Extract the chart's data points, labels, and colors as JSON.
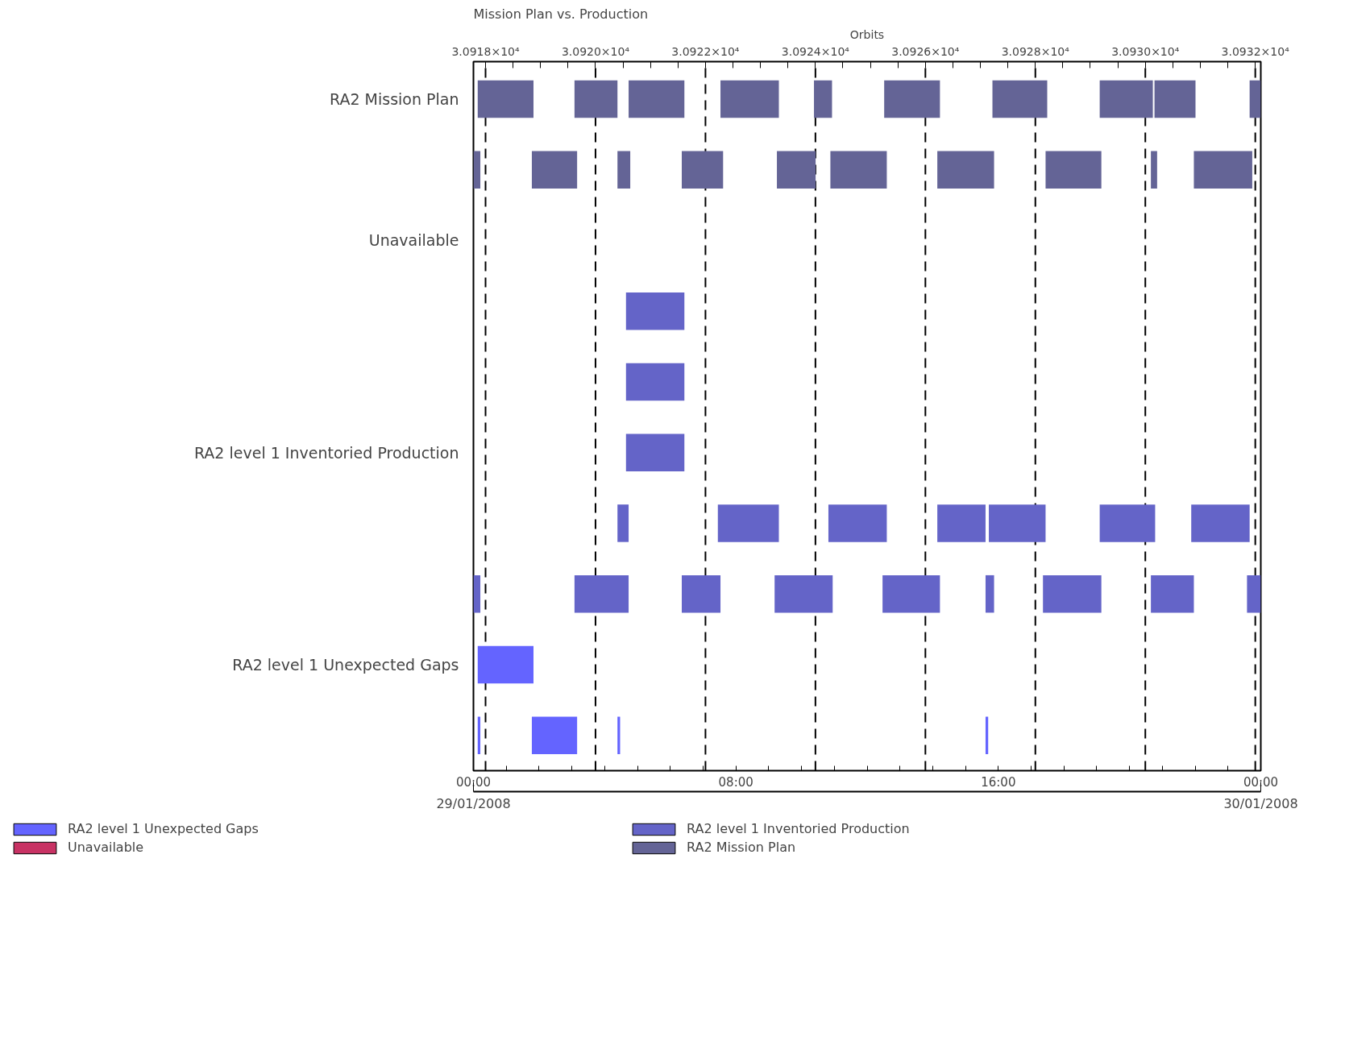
{
  "chart_data": {
    "type": "bar",
    "orientation": "horizontal",
    "title": "Mission Plan vs. Production",
    "x2label": "Orbits",
    "categories": [
      "RA2 Mission Plan",
      null,
      "Unavailable",
      null,
      null,
      "RA2 level 1 Inventoried Production",
      null,
      null,
      "RA2 level 1 Unexpected Gaps",
      null
    ],
    "xlim": [
      0,
      24
    ],
    "xticks": [
      {
        "value": 0,
        "label": "00:00"
      },
      {
        "value": 1,
        "label": null
      },
      {
        "value": 2,
        "label": null
      },
      {
        "value": 3,
        "label": null
      },
      {
        "value": 4,
        "label": null
      },
      {
        "value": 5,
        "label": null
      },
      {
        "value": 6,
        "label": null
      },
      {
        "value": 7,
        "label": null
      },
      {
        "value": 8,
        "label": "08:00"
      },
      {
        "value": 9,
        "label": null
      },
      {
        "value": 10,
        "label": null
      },
      {
        "value": 11,
        "label": null
      },
      {
        "value": 12,
        "label": null
      },
      {
        "value": 13,
        "label": null
      },
      {
        "value": 14,
        "label": null
      },
      {
        "value": 15,
        "label": null
      },
      {
        "value": 16,
        "label": "16:00"
      },
      {
        "value": 17,
        "label": null
      },
      {
        "value": 18,
        "label": null
      },
      {
        "value": 19,
        "label": null
      },
      {
        "value": 20,
        "label": null
      },
      {
        "value": 21,
        "label": null
      },
      {
        "value": 22,
        "label": null
      },
      {
        "value": 23,
        "label": null
      },
      {
        "value": 24,
        "label": "00:00"
      }
    ],
    "annotations": [
      "29/01/2008",
      "30/01/2008"
    ],
    "x2lim": [
      30917.78,
      30932.1
    ],
    "x2ticks": [
      {
        "value": 30918,
        "label": "3.0918×10⁴"
      },
      {
        "value": 30918.5,
        "label": null
      },
      {
        "value": 30919,
        "label": null
      },
      {
        "value": 30919.5,
        "label": null
      },
      {
        "value": 30920,
        "label": "3.0920×10⁴"
      },
      {
        "value": 30920.5,
        "label": null
      },
      {
        "value": 30921,
        "label": null
      },
      {
        "value": 30921.5,
        "label": null
      },
      {
        "value": 30922,
        "label": "3.0922×10⁴"
      },
      {
        "value": 30922.5,
        "label": null
      },
      {
        "value": 30923,
        "label": null
      },
      {
        "value": 30923.5,
        "label": null
      },
      {
        "value": 30924,
        "label": "3.0924×10⁴"
      },
      {
        "value": 30924.5,
        "label": null
      },
      {
        "value": 30925,
        "label": null
      },
      {
        "value": 30925.5,
        "label": null
      },
      {
        "value": 30926,
        "label": "3.0926×10⁴"
      },
      {
        "value": 30926.5,
        "label": null
      },
      {
        "value": 30927,
        "label": null
      },
      {
        "value": 30927.5,
        "label": null
      },
      {
        "value": 30928,
        "label": "3.0928×10⁴"
      },
      {
        "value": 30928.5,
        "label": null
      },
      {
        "value": 30929,
        "label": null
      },
      {
        "value": 30929.5,
        "label": null
      },
      {
        "value": 30930,
        "label": "3.0930×10⁴"
      },
      {
        "value": 30930.5,
        "label": null
      },
      {
        "value": 30931,
        "label": null
      },
      {
        "value": 30931.5,
        "label": null
      },
      {
        "value": 30932,
        "label": "3.0932×10⁴"
      }
    ],
    "ref_lines": [
      {
        "axis": "x2",
        "value": 30918,
        "line_style": "dashed"
      },
      {
        "axis": "x2",
        "value": 30920,
        "line_style": "dashed"
      },
      {
        "axis": "x2",
        "value": 30922,
        "line_style": "dashed"
      },
      {
        "axis": "x2",
        "value": 30924,
        "line_style": "dashed"
      },
      {
        "axis": "x2",
        "value": 30926,
        "line_style": "dashed"
      },
      {
        "axis": "x2",
        "value": 30928,
        "line_style": "dashed"
      },
      {
        "axis": "x2",
        "value": 30930,
        "line_style": "dashed"
      },
      {
        "axis": "x2",
        "value": 30932,
        "line_style": "dashed"
      }
    ],
    "legend": "bottom",
    "grid": false,
    "series": [
      {
        "name": "RA2 level 1 Unexpected Gaps",
        "color": "#6464ff",
        "base": [
          null,
          null,
          null,
          null,
          null,
          null,
          null,
          null,
          0.13,
          0.13
        ],
        "values": [
          null,
          null,
          null,
          null,
          null,
          null,
          null,
          null,
          1.7,
          0.08
        ]
      },
      {
        "color": "#6464ff",
        "base": [
          null,
          null,
          null,
          null,
          null,
          null,
          null,
          null,
          null,
          1.78
        ],
        "values": [
          null,
          null,
          null,
          null,
          null,
          null,
          null,
          null,
          null,
          1.38
        ]
      },
      {
        "color": "#6464ff",
        "base": [
          null,
          null,
          null,
          null,
          null,
          null,
          null,
          null,
          null,
          4.39
        ],
        "values": [
          null,
          null,
          null,
          null,
          null,
          null,
          null,
          null,
          null,
          0.08
        ]
      },
      {
        "color": "#6464ff",
        "base": [
          null,
          null,
          null,
          null,
          null,
          null,
          null,
          null,
          null,
          15.61
        ],
        "values": [
          null,
          null,
          null,
          null,
          null,
          null,
          null,
          null,
          null,
          0.08
        ]
      },
      {
        "name": "Unavailable",
        "color": "#c83264",
        "base": [
          null,
          null,
          null,
          null,
          null,
          null,
          null,
          null,
          null,
          null
        ],
        "values": [
          null,
          null,
          null,
          null,
          null,
          null,
          null,
          null,
          null,
          null
        ]
      },
      {
        "name": "RA2 level 1 Inventoried Production",
        "color": "#6464c8",
        "base": [
          null,
          null,
          null,
          4.65,
          4.65,
          4.65,
          4.39,
          0,
          null,
          null
        ],
        "values": [
          null,
          null,
          null,
          1.78,
          1.78,
          1.78,
          0.34,
          0.21,
          null,
          null
        ]
      },
      {
        "color": "#6464c8",
        "base": [
          null,
          null,
          null,
          null,
          null,
          null,
          7.45,
          3.08,
          null,
          null
        ],
        "values": [
          null,
          null,
          null,
          null,
          null,
          null,
          1.86,
          1.65,
          null,
          null
        ]
      },
      {
        "color": "#6464c8",
        "base": [
          null,
          null,
          null,
          null,
          null,
          null,
          10.82,
          6.35,
          null,
          null
        ],
        "values": [
          null,
          null,
          null,
          null,
          null,
          null,
          1.78,
          1.18,
          null,
          null
        ]
      },
      {
        "color": "#6464c8",
        "base": [
          null,
          null,
          null,
          null,
          null,
          null,
          14.14,
          9.18,
          null,
          null
        ],
        "values": [
          null,
          null,
          null,
          null,
          null,
          null,
          1.47,
          1.77,
          null,
          null
        ]
      },
      {
        "color": "#6464c8",
        "base": [
          null,
          null,
          null,
          null,
          null,
          null,
          15.71,
          12.47,
          null,
          null
        ],
        "values": [
          null,
          null,
          null,
          null,
          null,
          null,
          1.73,
          1.75,
          null,
          null
        ]
      },
      {
        "color": "#6464c8",
        "base": [
          null,
          null,
          null,
          null,
          null,
          null,
          19.09,
          15.61,
          null,
          null
        ],
        "values": [
          null,
          null,
          null,
          null,
          null,
          null,
          1.69,
          0.26,
          null,
          null
        ]
      },
      {
        "color": "#6464c8",
        "base": [
          null,
          null,
          null,
          null,
          null,
          null,
          21.88,
          17.36,
          null,
          null
        ],
        "values": [
          null,
          null,
          null,
          null,
          null,
          null,
          1.78,
          1.78,
          null,
          null
        ]
      },
      {
        "color": "#6464c8",
        "base": [
          null,
          null,
          null,
          null,
          null,
          null,
          null,
          20.65,
          null,
          null
        ],
        "values": [
          null,
          null,
          null,
          null,
          null,
          null,
          null,
          1.31,
          null,
          null
        ]
      },
      {
        "color": "#6464c8",
        "base": [
          null,
          null,
          null,
          null,
          null,
          null,
          null,
          23.58,
          null,
          null
        ],
        "values": [
          null,
          null,
          null,
          null,
          null,
          null,
          null,
          0.42,
          null,
          null
        ]
      },
      {
        "name": "RA2 Mission Plan",
        "color": "#646496",
        "base": [
          0.13,
          0,
          null,
          null,
          null,
          null,
          null,
          null,
          null,
          null
        ],
        "values": [
          1.7,
          0.21,
          null,
          null,
          null,
          null,
          null,
          null,
          null,
          null
        ]
      },
      {
        "color": "#646496",
        "base": [
          3.08,
          1.78,
          null,
          null,
          null,
          null,
          null,
          null,
          null,
          null
        ],
        "values": [
          1.31,
          1.38,
          null,
          null,
          null,
          null,
          null,
          null,
          null,
          null
        ]
      },
      {
        "color": "#646496",
        "base": [
          4.73,
          4.39,
          null,
          null,
          null,
          null,
          null,
          null,
          null,
          null
        ],
        "values": [
          1.7,
          0.39,
          null,
          null,
          null,
          null,
          null,
          null,
          null,
          null
        ]
      },
      {
        "color": "#646496",
        "base": [
          7.53,
          6.35,
          null,
          null,
          null,
          null,
          null,
          null,
          null,
          null
        ],
        "values": [
          1.78,
          1.26,
          null,
          null,
          null,
          null,
          null,
          null,
          null,
          null
        ]
      },
      {
        "color": "#646496",
        "base": [
          10.38,
          9.25,
          null,
          null,
          null,
          null,
          null,
          null,
          null,
          null
        ],
        "values": [
          0.55,
          1.18,
          null,
          null,
          null,
          null,
          null,
          null,
          null,
          null
        ]
      },
      {
        "color": "#646496",
        "base": [
          12.52,
          10.88,
          null,
          null,
          null,
          null,
          null,
          null,
          null,
          null
        ],
        "values": [
          1.7,
          1.72,
          null,
          null,
          null,
          null,
          null,
          null,
          null,
          null
        ]
      },
      {
        "color": "#646496",
        "base": [
          15.82,
          14.14,
          null,
          null,
          null,
          null,
          null,
          null,
          null,
          null
        ],
        "values": [
          1.67,
          1.73,
          null,
          null,
          null,
          null,
          null,
          null,
          null,
          null
        ]
      },
      {
        "color": "#646496",
        "base": [
          19.09,
          17.44,
          null,
          null,
          null,
          null,
          null,
          null,
          null,
          null
        ],
        "values": [
          1.62,
          1.7,
          null,
          null,
          null,
          null,
          null,
          null,
          null,
          null
        ]
      },
      {
        "color": "#646496",
        "base": [
          20.76,
          20.65,
          null,
          null,
          null,
          null,
          null,
          null,
          null,
          null
        ],
        "values": [
          1.25,
          0.19,
          null,
          null,
          null,
          null,
          null,
          null,
          null,
          null
        ]
      },
      {
        "color": "#646496",
        "base": [
          23.66,
          21.96,
          null,
          null,
          null,
          null,
          null,
          null,
          null,
          null
        ],
        "values": [
          0.34,
          1.78,
          null,
          null,
          null,
          null,
          null,
          null,
          null,
          null
        ]
      }
    ]
  }
}
